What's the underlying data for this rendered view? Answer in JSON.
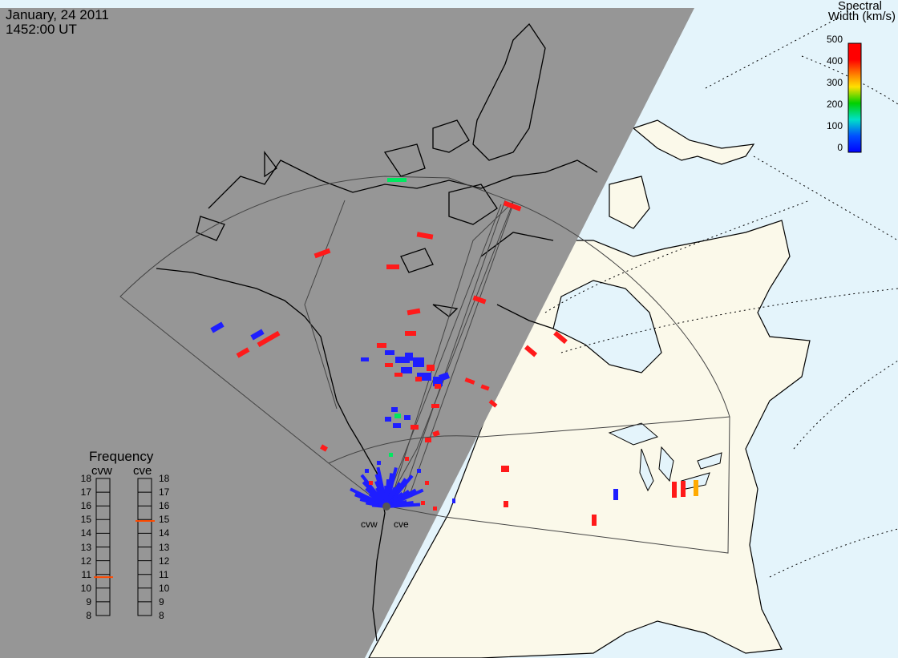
{
  "header": {
    "date": "January, 24 2011",
    "time": "1452:00 UT"
  },
  "colorbar": {
    "title_line1": "Spectral",
    "title_line2": "Width (km/s)",
    "ticks": [
      "500",
      "400",
      "300",
      "200",
      "100",
      "0"
    ],
    "colors": [
      "#ff0000",
      "#ff8c00",
      "#ffe000",
      "#00d000",
      "#00e0c8",
      "#0050ff",
      "#0000ff"
    ]
  },
  "frequency": {
    "title": "Frequency",
    "radar_west": "cvw",
    "radar_east": "cve",
    "scale": [
      "18",
      "17",
      "16",
      "15",
      "14",
      "13",
      "12",
      "11",
      "10",
      "9",
      "8"
    ],
    "cvw_value_mhz": 10.8,
    "cve_value_mhz": 14.9
  },
  "radars": {
    "west_label": "cvw",
    "east_label": "cve"
  },
  "colors": {
    "night": "#969696",
    "ocean_day": "#e4f4fb",
    "land_day": "#fbf9ea",
    "red": "#ff1a1a",
    "blue": "#1e1eff",
    "green": "#00e860",
    "orange": "#ffaa00",
    "indicator": "#ff4a00"
  }
}
